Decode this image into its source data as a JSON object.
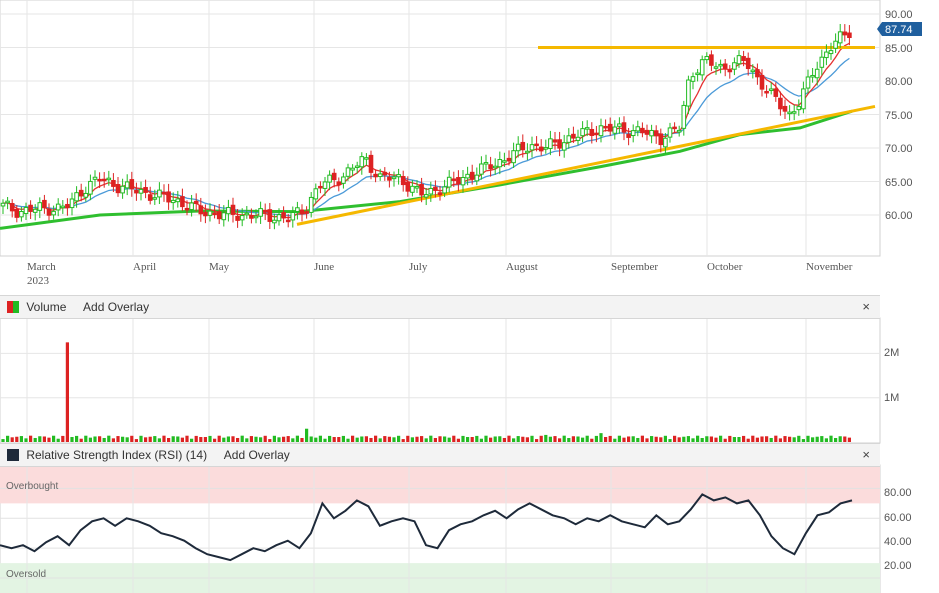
{
  "volume_header": {
    "title": "Volume",
    "add_overlay": "Add Overlay",
    "close": "×"
  },
  "rsi_header": {
    "title": "Relative Strength Index (RSI) (14)",
    "add_overlay": "Add Overlay",
    "close": "×"
  },
  "colors": {
    "up": "#22bb22",
    "down": "#dd2222",
    "ma_short": "#e53030",
    "ma_mid": "#4b9ad8",
    "ma_long": "#2fbf2f",
    "trend": "#f5b800",
    "price_tag": "#1f5f9e",
    "rsi_line": "#1e2a3a"
  },
  "chart_data": [
    {
      "type": "candlestick",
      "x_labels": [
        "March",
        "2023",
        "April",
        "May",
        "June",
        "July",
        "August",
        "September",
        "October",
        "November"
      ],
      "y_ticks": [
        "90.00",
        "85.00",
        "80.00",
        "75.00",
        "70.00",
        "65.00",
        "60.00"
      ],
      "ylim": [
        55,
        91
      ],
      "last_price": "87.74",
      "grid": true,
      "legend": "none"
    },
    {
      "type": "bar",
      "name": "Volume",
      "y_ticks": [
        "2M",
        "1M"
      ],
      "ylim": [
        0,
        2800000
      ],
      "spike_value": 2250000,
      "typical_value": 110000
    },
    {
      "type": "line",
      "name": "Relative Strength Index (RSI) (14)",
      "y_ticks": [
        "80.00",
        "60.00",
        "40.00",
        "20.00"
      ],
      "ylim": [
        10,
        95
      ],
      "zones": {
        "overbought_label": "Overbought",
        "oversold_label": "Oversold",
        "overbought_level": 70,
        "oversold_level": 30
      },
      "values": [
        42,
        40,
        42,
        38,
        44,
        48,
        42,
        52,
        58,
        60,
        55,
        60,
        58,
        55,
        50,
        48,
        45,
        40,
        36,
        34,
        32,
        36,
        40,
        38,
        42,
        45,
        40,
        50,
        70,
        60,
        65,
        72,
        68,
        55,
        58,
        60,
        58,
        42,
        40,
        52,
        56,
        58,
        62,
        65,
        60,
        66,
        70,
        66,
        62,
        60,
        56,
        60,
        58,
        62,
        58,
        56,
        54,
        62,
        56,
        58,
        66,
        76,
        72,
        74,
        70,
        72,
        62,
        48,
        40,
        36,
        50,
        62,
        64,
        70,
        72
      ]
    }
  ]
}
